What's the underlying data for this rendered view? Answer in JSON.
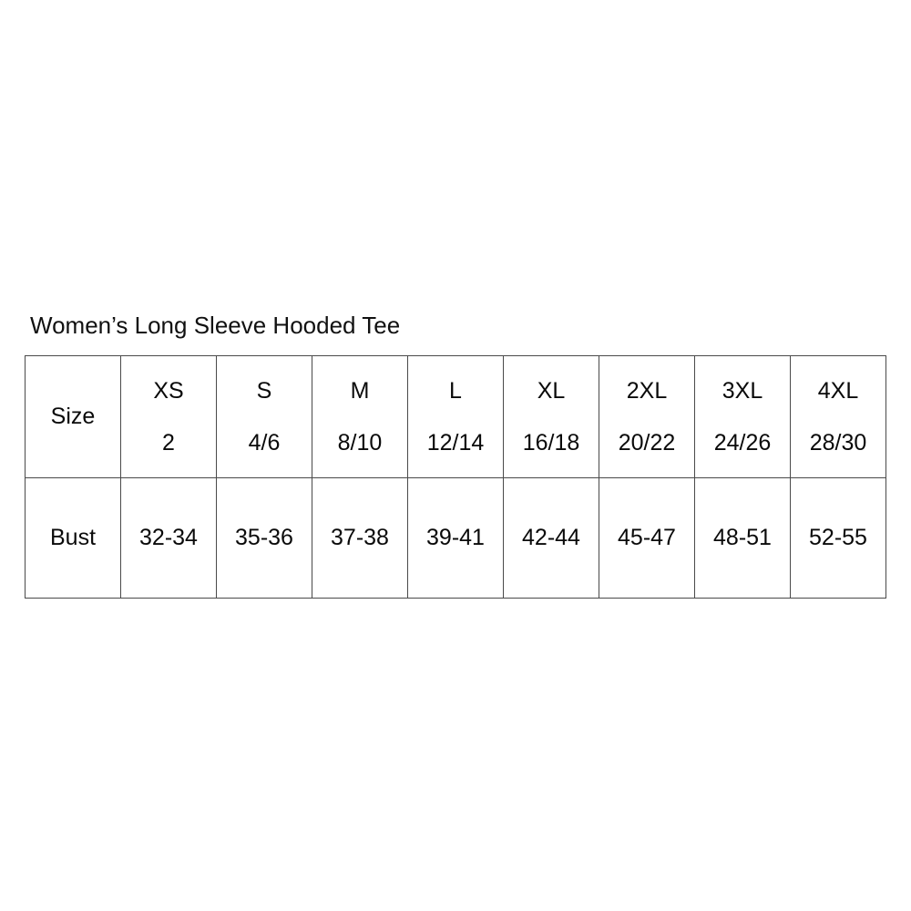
{
  "chart_data": {
    "type": "table",
    "title": "Women’s Long Sleeve Hooded Tee",
    "header": {
      "row_label": "Size",
      "sizes": [
        "XS",
        "S",
        "M",
        "L",
        "XL",
        "2XL",
        "3XL",
        "4XL"
      ],
      "numeric_sizes": [
        "2",
        "4/6",
        "8/10",
        "12/14",
        "16/18",
        "20/22",
        "24/26",
        "28/30"
      ]
    },
    "rows": [
      {
        "label": "Bust",
        "values": [
          "32-34",
          "35-36",
          "37-38",
          "39-41",
          "42-44",
          "45-47",
          "48-51",
          "52-55"
        ]
      }
    ],
    "layout": {
      "columns": 9,
      "border_color": "#4a4a4a",
      "background": "#ffffff",
      "text_color": "#0a0a0a"
    }
  }
}
